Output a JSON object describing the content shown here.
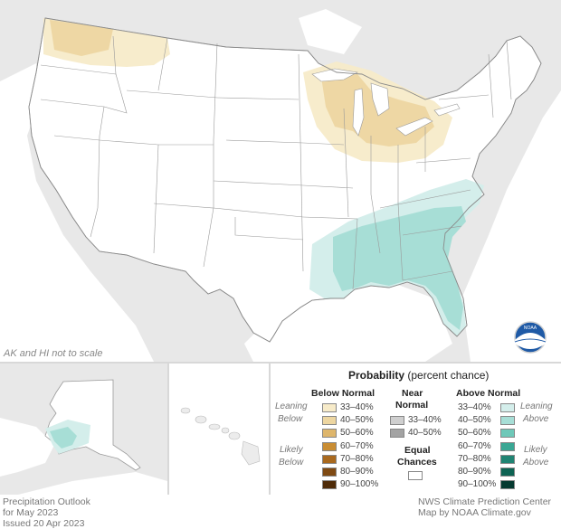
{
  "map": {
    "not_to_scale_note": "AK and HI not to scale",
    "noaa_logo_text": "NOAA"
  },
  "legend": {
    "title": "Probability",
    "title_suffix": "(percent chance)",
    "below_header": "Below Normal",
    "near_header_1": "Near",
    "near_header_2": "Normal",
    "above_header": "Above Normal",
    "leaning_below_1": "Leaning",
    "leaning_below_2": "Below",
    "likely_below_1": "Likely",
    "likely_below_2": "Below",
    "leaning_above_1": "Leaning",
    "leaning_above_2": "Above",
    "likely_above_1": "Likely",
    "likely_above_2": "Above",
    "equal_chances_1": "Equal",
    "equal_chances_2": "Chances",
    "below_bins": [
      {
        "label": "33–40%",
        "color": "#f7ebc9"
      },
      {
        "label": "40–50%",
        "color": "#edd6a1"
      },
      {
        "label": "50–60%",
        "color": "#deb66c"
      },
      {
        "label": "60–70%",
        "color": "#c98d33"
      },
      {
        "label": "70–80%",
        "color": "#a9691e"
      },
      {
        "label": "80–90%",
        "color": "#7f4a13"
      },
      {
        "label": "90–100%",
        "color": "#4e2b08"
      }
    ],
    "near_bins": [
      {
        "label": "33–40%",
        "color": "#cfcfcf"
      },
      {
        "label": "40–50%",
        "color": "#a3a3a3"
      }
    ],
    "above_bins": [
      {
        "label": "33–40%",
        "color": "#d4eeeb"
      },
      {
        "label": "40–50%",
        "color": "#a7ded6"
      },
      {
        "label": "50–60%",
        "color": "#6ec8b8"
      },
      {
        "label": "60–70%",
        "color": "#3aa794"
      },
      {
        "label": "70–80%",
        "color": "#208473"
      },
      {
        "label": "80–90%",
        "color": "#0e6353"
      },
      {
        "label": "90–100%",
        "color": "#053a30"
      }
    ]
  },
  "footer": {
    "left_line1": "Precipitation Outlook",
    "left_line2": "for May 2023",
    "left_line3": "Issued 20 Apr 2023",
    "right_line1": "NWS Climate Prediction Center",
    "right_line2": "Map by NOAA Climate.gov"
  },
  "colors": {
    "background_land": "#e6e6e6",
    "water": "#ffffff",
    "state_fill": "#ffffff",
    "border": "#9a9a9a"
  }
}
